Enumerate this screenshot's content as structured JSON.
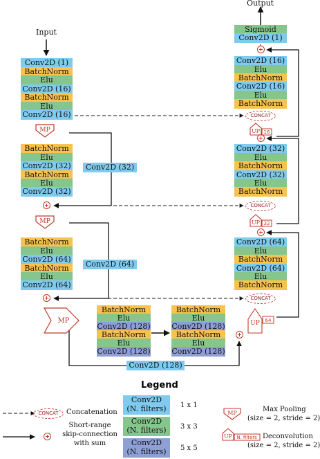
{
  "labels": {
    "input": "Input",
    "output": "Output",
    "concat": "CONCAT",
    "mp": "MP",
    "up": "UP",
    "up16": "16",
    "up32": "32",
    "up64": "64",
    "skip32": "Conv2D (32)",
    "skip64": "Conv2D (64)",
    "skip128": "Conv2D (128)"
  },
  "encoder": {
    "stage1": [
      "Conv2D (1)",
      "BatchNorm",
      "Elu",
      "Conv2D (16)",
      "BatchNorm",
      "Elu",
      "Conv2D (16)"
    ],
    "stage2": [
      "BatchNorm",
      "Elu",
      "Conv2D (32)",
      "BatchNorm",
      "Elu",
      "Conv2D (32)"
    ],
    "stage3": [
      "BatchNorm",
      "Elu",
      "Conv2D (64)",
      "BatchNorm",
      "Elu",
      "Conv2D (64)"
    ]
  },
  "bottleneck": {
    "left": [
      "BatchNorm",
      "Elu",
      "Conv2D (128)",
      "BatchNorm",
      "Elu",
      "Conv2D (128)"
    ],
    "right": [
      "BatchNorm",
      "Elu",
      "Conv2D (128)",
      "BatchNorm",
      "Elu",
      "Conv2D (128)"
    ]
  },
  "decoder": {
    "top": [
      "Sigmoid",
      "Conv2D (1)"
    ],
    "stage1": [
      "Conv2D (16)",
      "Elu",
      "BatchNorm",
      "Conv2D (16)",
      "Elu",
      "BatchNorm"
    ],
    "stage2": [
      "Conv2D (32)",
      "Elu",
      "BatchNorm",
      "Conv2D (32)",
      "Elu",
      "BatchNorm"
    ],
    "stage3": [
      "Conv2D (64)",
      "Elu",
      "BatchNorm",
      "Conv2D (64)",
      "Elu",
      "BatchNorm"
    ]
  },
  "legend": {
    "title": "Legend",
    "concat_label": "Concatenation",
    "skip_label_1": "Short-range",
    "skip_label_2": "skip-connection",
    "skip_label_3": "with sum",
    "conv_line1": "Conv2D",
    "conv_line2": "(N. filters)",
    "k1": "1 x 1",
    "k3": "3 x 3",
    "k5": "5 x 5",
    "mp_label_1": "Max Pooling",
    "mp_label_2": "(size = 2, stride = 2)",
    "up_tag": "N. filters",
    "deconv_label_1": "Deconvolution",
    "deconv_label_2": "(size = 2, stride = 2)"
  },
  "colors": {
    "conv1x1": "#7ecbef",
    "conv3x3": "#86c68d",
    "conv5x5": "#8e9fd6",
    "batchnorm": "#f8c24f",
    "accent_red": "#c0392b"
  }
}
